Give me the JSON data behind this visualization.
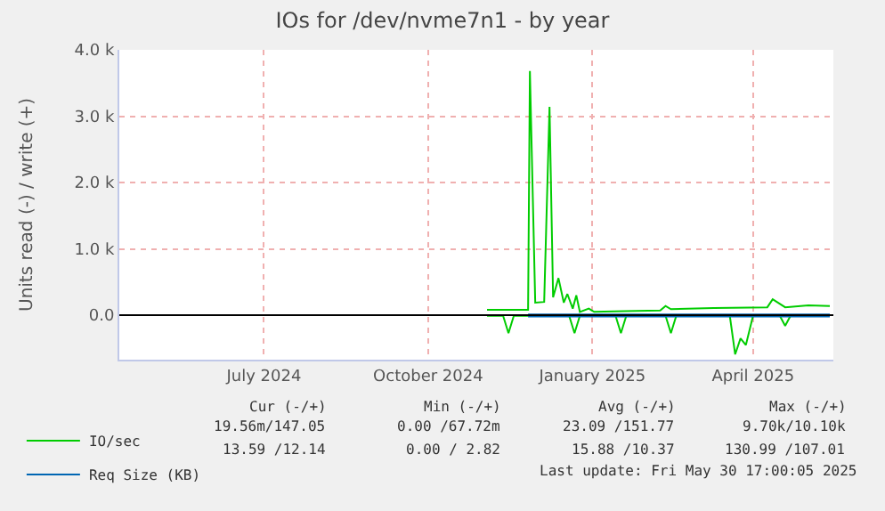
{
  "chart_data": {
    "type": "line",
    "title": "IOs for /dev/nvme7n1 - by year",
    "ylabel": "Units read (-) / write (+)",
    "xlim": [
      "2024-04-26",
      "2025-05-31"
    ],
    "xticks": [
      {
        "value": "2024-07-16",
        "label": "July 2024"
      },
      {
        "value": "2024-10-16",
        "label": "October 2024"
      },
      {
        "value": "2025-01-16",
        "label": "January 2025"
      },
      {
        "value": "2025-04-16",
        "label": "April 2025"
      }
    ],
    "ylim": [
      -670,
      4000
    ],
    "yticks": [
      {
        "value": 0,
        "label": "0.0"
      },
      {
        "value": 1000,
        "label": "1.0 k"
      },
      {
        "value": 2000,
        "label": "2.0 k"
      },
      {
        "value": 3000,
        "label": "3.0 k"
      },
      {
        "value": 4000,
        "label": "4.0 k"
      }
    ],
    "grid": true,
    "legend": "bottom left",
    "marker": "none",
    "line_style": "solid",
    "ref_lines": [
      {
        "axis": "y",
        "value": 0,
        "color": "#000000"
      }
    ],
    "series": [
      {
        "name": "IO/sec",
        "color": "#00cc00",
        "x": [
          "2024-11-18",
          "2024-12-11",
          "2024-12-12",
          "2024-12-15",
          "2024-12-20",
          "2024-12-23",
          "2024-12-25",
          "2024-12-28",
          "2024-12-31",
          "2025-01-02",
          "2025-01-05",
          "2025-01-07",
          "2025-01-09",
          "2025-01-14",
          "2025-01-17",
          "2025-02-03",
          "2025-02-23",
          "2025-02-26",
          "2025-03-01",
          "2025-03-25",
          "2025-04-24",
          "2025-04-27",
          "2025-05-04",
          "2025-05-17",
          "2025-05-29"
        ],
        "values": [
          80,
          80,
          3680,
          190,
          200,
          3140,
          270,
          560,
          190,
          320,
          100,
          300,
          50,
          100,
          50,
          60,
          70,
          140,
          90,
          110,
          120,
          240,
          120,
          150,
          140
        ]
      },
      {
        "color": "#00cc00",
        "x": [
          "2024-11-18",
          "2024-11-27",
          "2024-11-30",
          "2024-12-03",
          "2025-01-03",
          "2025-01-06",
          "2025-01-09",
          "2025-01-29",
          "2025-02-01",
          "2025-02-04",
          "2025-02-26",
          "2025-03-01",
          "2025-03-04",
          "2025-04-03",
          "2025-04-06",
          "2025-04-09",
          "2025-04-12",
          "2025-04-16",
          "2025-05-01",
          "2025-05-04",
          "2025-05-07"
        ],
        "values": [
          -10,
          -10,
          -270,
          -10,
          -10,
          -270,
          -10,
          -10,
          -270,
          -10,
          -10,
          -270,
          -10,
          -10,
          -590,
          -350,
          -450,
          -10,
          -10,
          -160,
          -10
        ]
      },
      {
        "name": "Req Size (KB)",
        "color": "#0066b3",
        "x": [
          "2024-12-11",
          "2025-05-29"
        ],
        "values": [
          10,
          10
        ]
      },
      {
        "color": "#0066b3",
        "x": [
          "2024-12-11",
          "2025-05-29"
        ],
        "values": [
          -20,
          -20
        ]
      }
    ],
    "annotations": [
      "Cur (-/+)",
      "Min (-/+)",
      "Avg (-/+)",
      "Max (-/+)",
      "19.56m/147.05",
      "0.00 /67.72m",
      "23.09 /151.77",
      "9.70k/10.10k",
      "13.59 /12.14",
      "0.00 / 2.82",
      "15.88 /10.37",
      "130.99 /107.01",
      "Last update: Fri May 30 17:00:05 2025"
    ]
  }
}
